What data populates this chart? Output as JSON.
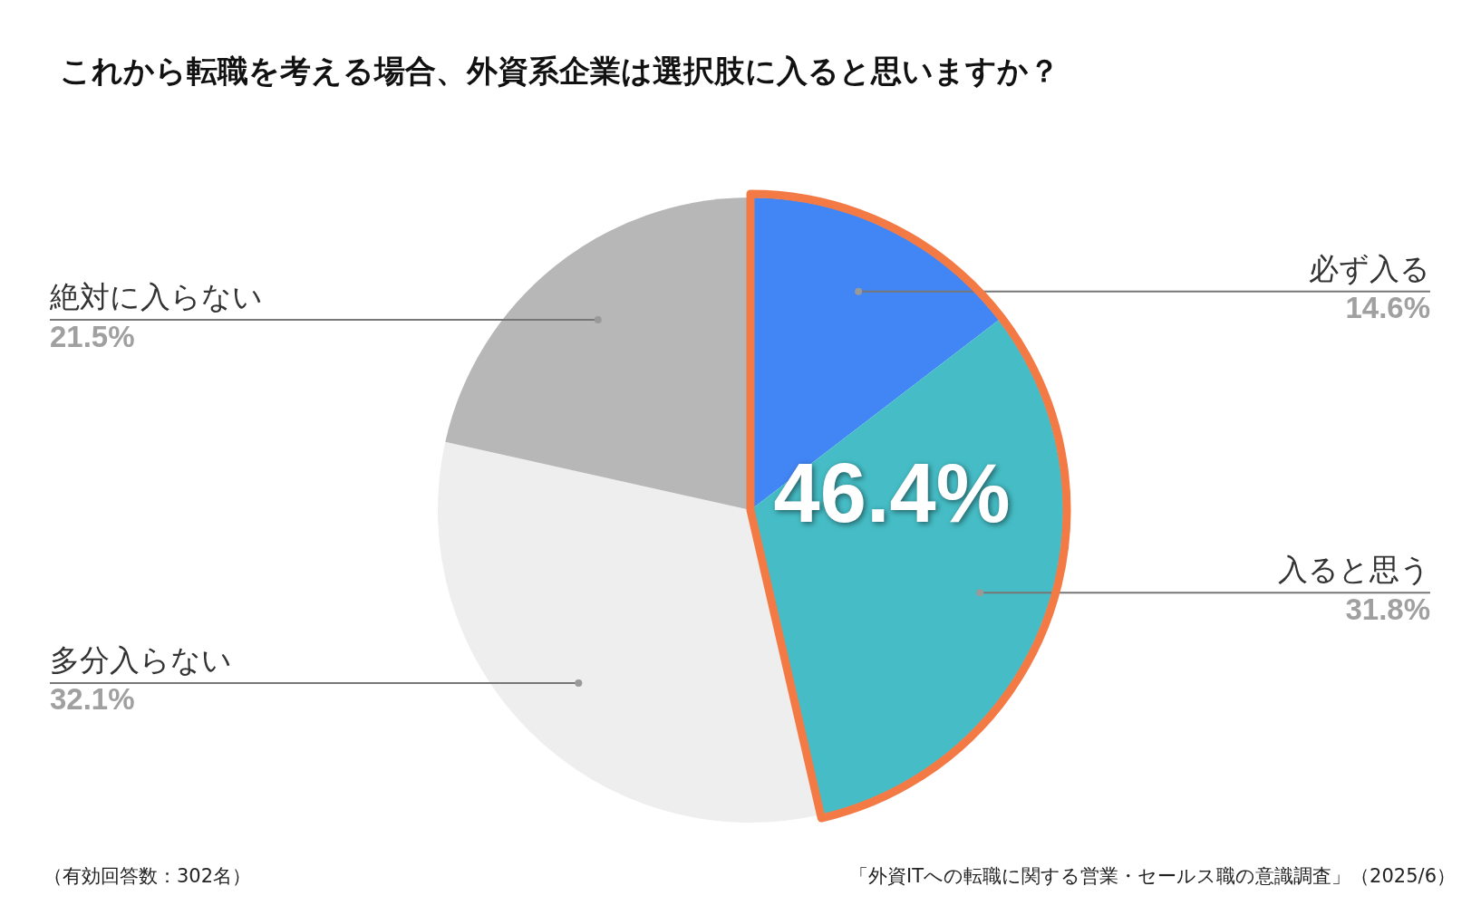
{
  "chart_data": {
    "type": "pie",
    "title": "これから転職を考える場合、外資系企業は選択肢に入ると思いますか？",
    "categories": [
      "必ず入る",
      "入ると思う",
      "多分入らない",
      "絶対に入らない"
    ],
    "values": [
      14.6,
      31.8,
      32.1,
      21.5
    ],
    "colors": [
      "#4285f4",
      "#46bdc6",
      "#eeeeee",
      "#b7b7b7"
    ],
    "value_labels": [
      "14.6%",
      "31.8%",
      "32.1%",
      "21.5%"
    ],
    "legend": false,
    "annotations": [
      "46.4%",
      "（有効回答数：302名）",
      "「外資ITへの転職に関する営業・セールス職の意識調査」（2025/6）"
    ]
  }
}
